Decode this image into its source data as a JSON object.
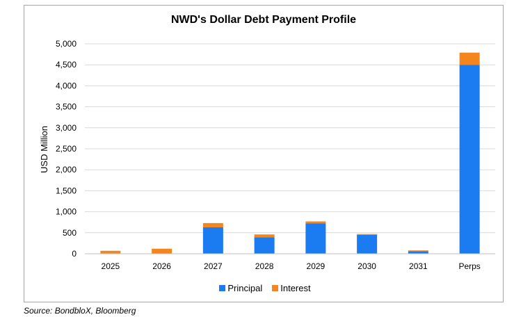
{
  "chart_data": {
    "type": "bar",
    "stacked": true,
    "title": "NWD's Dollar Debt Payment Profile",
    "xlabel": "",
    "ylabel": "USD Million",
    "ylim": [
      0,
      5000
    ],
    "yticks": [
      "0",
      "500",
      "1,000",
      "1,500",
      "2,000",
      "2,500",
      "3,000",
      "3,500",
      "4,000",
      "4,500",
      "5,000"
    ],
    "grid": true,
    "legend_position": "bottom",
    "categories": [
      "2025",
      "2026",
      "2027",
      "2028",
      "2029",
      "2030",
      "2031",
      "Perps"
    ],
    "series": [
      {
        "name": "Principal",
        "color": "#1a7cf0",
        "values": [
          0,
          0,
          630,
          390,
          720,
          450,
          60,
          4500
        ]
      },
      {
        "name": "Interest",
        "color": "#f5861f",
        "values": [
          70,
          120,
          100,
          70,
          50,
          20,
          20,
          290
        ]
      }
    ]
  },
  "source": "Source: BondbloX, Bloomberg"
}
